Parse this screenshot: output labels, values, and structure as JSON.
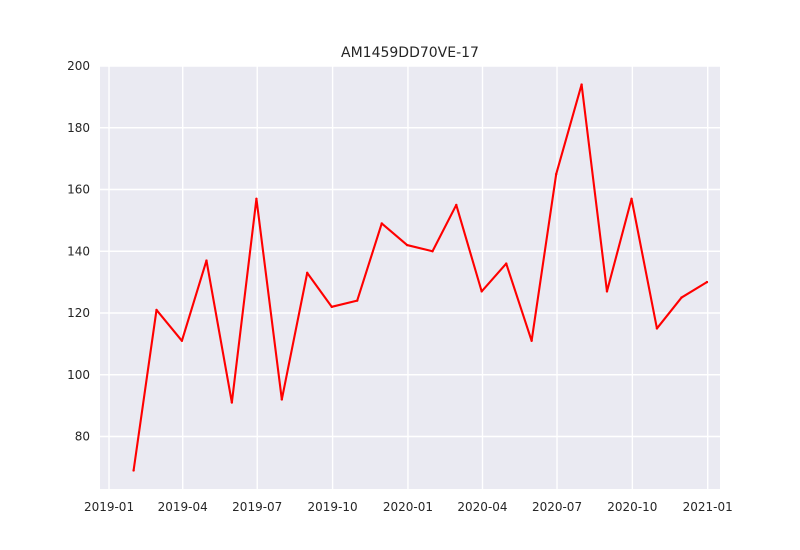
{
  "chart_data": {
    "type": "line",
    "title": "AM1459DD70VE-17",
    "xlabel": "",
    "ylabel": "",
    "ylim": [
      63,
      200
    ],
    "xlim": [
      "2018-12-21",
      "2021-01-16"
    ],
    "grid": true,
    "legend": "none",
    "colors": {
      "background": "#EAEAF2",
      "grid": "#FFFFFF",
      "line": "#FF0000",
      "text": "#262626"
    },
    "x_ticks": [
      {
        "label": "2019-01",
        "date": "2019-01-01"
      },
      {
        "label": "2019-04",
        "date": "2019-04-01"
      },
      {
        "label": "2019-07",
        "date": "2019-07-01"
      },
      {
        "label": "2019-10",
        "date": "2019-10-01"
      },
      {
        "label": "2020-01",
        "date": "2020-01-01"
      },
      {
        "label": "2020-04",
        "date": "2020-04-01"
      },
      {
        "label": "2020-07",
        "date": "2020-07-01"
      },
      {
        "label": "2020-10",
        "date": "2020-10-01"
      },
      {
        "label": "2021-01",
        "date": "2021-01-01"
      }
    ],
    "y_ticks": [
      80,
      100,
      120,
      140,
      160,
      180,
      200
    ],
    "series": [
      {
        "color": "#FF0000",
        "x": [
          "2019-01-31",
          "2019-02-28",
          "2019-03-31",
          "2019-04-30",
          "2019-05-31",
          "2019-06-30",
          "2019-07-31",
          "2019-08-31",
          "2019-09-30",
          "2019-10-31",
          "2019-11-30",
          "2019-12-31",
          "2020-01-31",
          "2020-02-29",
          "2020-03-31",
          "2020-04-30",
          "2020-05-31",
          "2020-06-30",
          "2020-07-31",
          "2020-08-31",
          "2020-09-30",
          "2020-10-31",
          "2020-11-30",
          "2020-12-31"
        ],
        "values": [
          69,
          121,
          111,
          137,
          91,
          157,
          92,
          133,
          122,
          124,
          149,
          142,
          140,
          155,
          127,
          136,
          111,
          165,
          194,
          127,
          157,
          115,
          125,
          130
        ]
      }
    ]
  }
}
